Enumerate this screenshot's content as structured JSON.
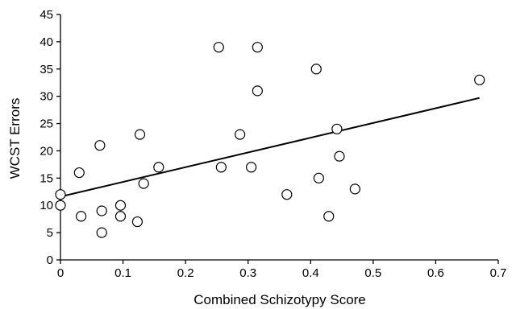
{
  "chart_data": {
    "type": "scatter",
    "xlabel": "Combined Schizotypy Score",
    "ylabel": "WCST Errors",
    "xlim": [
      0,
      0.7
    ],
    "ylim": [
      0,
      45
    ],
    "x_ticks": [
      "0",
      "0.1",
      "0.2",
      "0.3",
      "0.4",
      "0.5",
      "0.6",
      "0.7"
    ],
    "y_ticks": [
      "0",
      "5",
      "10",
      "15",
      "20",
      "25",
      "30",
      "35",
      "40",
      "45"
    ],
    "grid": false,
    "legend": "none",
    "marker": "open-circle",
    "points": [
      {
        "x": 0.0,
        "y": 12
      },
      {
        "x": 0.0,
        "y": 10
      },
      {
        "x": 0.03,
        "y": 16
      },
      {
        "x": 0.033,
        "y": 8
      },
      {
        "x": 0.063,
        "y": 21
      },
      {
        "x": 0.066,
        "y": 9
      },
      {
        "x": 0.066,
        "y": 5
      },
      {
        "x": 0.096,
        "y": 10
      },
      {
        "x": 0.096,
        "y": 8
      },
      {
        "x": 0.123,
        "y": 7
      },
      {
        "x": 0.127,
        "y": 23
      },
      {
        "x": 0.133,
        "y": 14
      },
      {
        "x": 0.157,
        "y": 17
      },
      {
        "x": 0.253,
        "y": 39
      },
      {
        "x": 0.257,
        "y": 17
      },
      {
        "x": 0.287,
        "y": 23
      },
      {
        "x": 0.305,
        "y": 17
      },
      {
        "x": 0.315,
        "y": 39
      },
      {
        "x": 0.315,
        "y": 31
      },
      {
        "x": 0.362,
        "y": 12
      },
      {
        "x": 0.409,
        "y": 35
      },
      {
        "x": 0.413,
        "y": 15
      },
      {
        "x": 0.429,
        "y": 8
      },
      {
        "x": 0.442,
        "y": 24
      },
      {
        "x": 0.446,
        "y": 19
      },
      {
        "x": 0.471,
        "y": 13
      },
      {
        "x": 0.67,
        "y": 33
      }
    ],
    "trendline": {
      "x": [
        0.0,
        0.67
      ],
      "y": [
        11.6,
        29.7
      ]
    }
  }
}
